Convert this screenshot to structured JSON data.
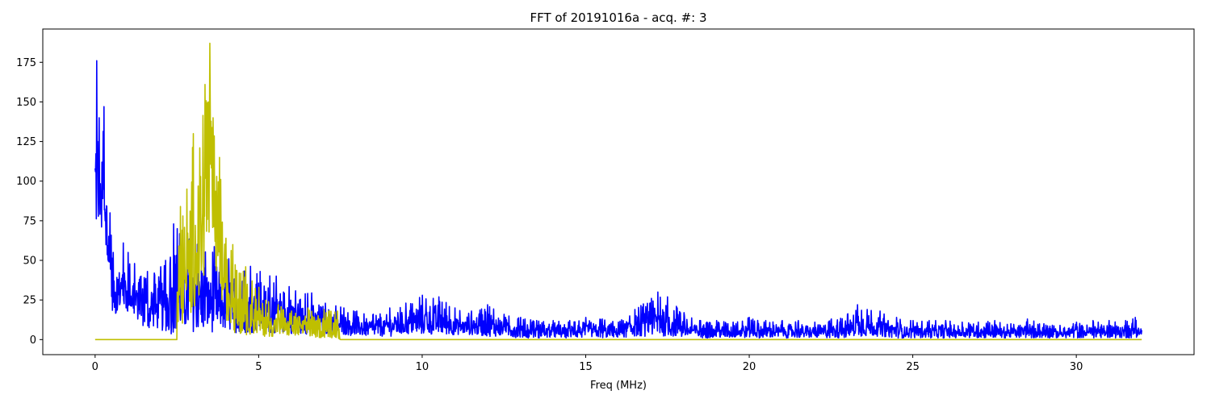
{
  "chart_data": {
    "type": "line",
    "title": "FFT of 20191016a - acq. #: 3",
    "xlabel": "Freq (MHz)",
    "ylabel": "",
    "xlim": [
      -1.6,
      33.6
    ],
    "ylim": [
      -9.5,
      196
    ],
    "xticks": [
      0,
      5,
      10,
      15,
      20,
      25,
      30
    ],
    "yticks": [
      0,
      25,
      50,
      75,
      100,
      125,
      150,
      175
    ],
    "grid": false,
    "legend": "none",
    "series": [
      {
        "color": "#0000ff",
        "description": "Full FFT magnitude spectrum",
        "envelope": [
          [
            0.0,
            105,
            108
          ],
          [
            0.04,
            62,
            176
          ],
          [
            0.12,
            64,
            140
          ],
          [
            0.2,
            65,
            112
          ],
          [
            0.26,
            45,
            147
          ],
          [
            0.35,
            50,
            84
          ],
          [
            0.45,
            30,
            80
          ],
          [
            0.55,
            15,
            55
          ],
          [
            0.7,
            15,
            38
          ],
          [
            0.85,
            20,
            61
          ],
          [
            1.0,
            15,
            55
          ],
          [
            1.2,
            14,
            48
          ],
          [
            1.4,
            10,
            40
          ],
          [
            1.6,
            5,
            43
          ],
          [
            1.8,
            8,
            42
          ],
          [
            2.0,
            5,
            46
          ],
          [
            2.15,
            5,
            50
          ],
          [
            2.3,
            3,
            52
          ],
          [
            2.4,
            4,
            73
          ],
          [
            2.5,
            5,
            70
          ],
          [
            7.6,
            3,
            20
          ],
          [
            8.0,
            2,
            18
          ],
          [
            8.5,
            2,
            16
          ],
          [
            9.0,
            2,
            20
          ],
          [
            9.5,
            3,
            23
          ],
          [
            10.0,
            3,
            28
          ],
          [
            10.5,
            3,
            27
          ],
          [
            11.0,
            3,
            20
          ],
          [
            11.5,
            3,
            18
          ],
          [
            12.0,
            2,
            22
          ],
          [
            12.5,
            2,
            16
          ],
          [
            13.0,
            1,
            14
          ],
          [
            13.5,
            1,
            12
          ],
          [
            14.0,
            1,
            12
          ],
          [
            14.5,
            1,
            12
          ],
          [
            15.0,
            1,
            14
          ],
          [
            15.5,
            1,
            13
          ],
          [
            16.0,
            1,
            11
          ],
          [
            16.5,
            2,
            19
          ],
          [
            17.0,
            2,
            26
          ],
          [
            17.2,
            2,
            30
          ],
          [
            17.5,
            2,
            27
          ],
          [
            18.0,
            1,
            17
          ],
          [
            18.5,
            1,
            12
          ],
          [
            19.0,
            1,
            12
          ],
          [
            19.5,
            1,
            11
          ],
          [
            20.0,
            1,
            14
          ],
          [
            20.5,
            1,
            12
          ],
          [
            21.0,
            1,
            12
          ],
          [
            21.5,
            1,
            12
          ],
          [
            22.0,
            1,
            11
          ],
          [
            22.5,
            1,
            13
          ],
          [
            23.0,
            1,
            16
          ],
          [
            23.3,
            2,
            22
          ],
          [
            23.6,
            2,
            19
          ],
          [
            24.0,
            2,
            18
          ],
          [
            24.5,
            1,
            14
          ],
          [
            25.0,
            1,
            12
          ],
          [
            25.5,
            1,
            12
          ],
          [
            26.0,
            1,
            12
          ],
          [
            26.5,
            1,
            11
          ],
          [
            27.0,
            1,
            11
          ],
          [
            27.5,
            1,
            12
          ],
          [
            28.0,
            1,
            10
          ],
          [
            28.5,
            1,
            13
          ],
          [
            29.0,
            1,
            10
          ],
          [
            29.5,
            1,
            9
          ],
          [
            30.0,
            1,
            11
          ],
          [
            30.5,
            1,
            12
          ],
          [
            31.0,
            1,
            12
          ],
          [
            31.5,
            1,
            12
          ],
          [
            31.8,
            1,
            14
          ],
          [
            32.0,
            3,
            6
          ]
        ]
      },
      {
        "color": "#bfbf00",
        "description": "Band-filtered FFT (2.5 - 7.5 MHz), zero elsewhere",
        "envelope": [
          [
            0.0,
            0,
            0
          ],
          [
            2.5,
            0,
            0
          ],
          [
            2.51,
            4,
            30
          ],
          [
            2.6,
            8,
            84
          ],
          [
            2.8,
            10,
            95
          ],
          [
            3.0,
            20,
            130
          ],
          [
            3.2,
            25,
            121
          ],
          [
            3.35,
            40,
            161
          ],
          [
            3.45,
            50,
            150
          ],
          [
            3.5,
            60,
            187
          ],
          [
            3.6,
            50,
            140
          ],
          [
            3.8,
            30,
            115
          ],
          [
            4.0,
            10,
            64
          ],
          [
            4.2,
            5,
            60
          ],
          [
            4.4,
            3,
            42
          ],
          [
            4.6,
            3,
            46
          ],
          [
            4.8,
            3,
            37
          ],
          [
            5.0,
            2,
            33
          ],
          [
            5.3,
            2,
            24
          ],
          [
            5.6,
            2,
            22
          ],
          [
            6.0,
            2,
            18
          ],
          [
            6.5,
            1,
            20
          ],
          [
            7.0,
            1,
            19
          ],
          [
            7.4,
            1,
            18
          ],
          [
            7.5,
            0,
            0
          ],
          [
            32.0,
            0,
            0
          ]
        ]
      }
    ]
  }
}
